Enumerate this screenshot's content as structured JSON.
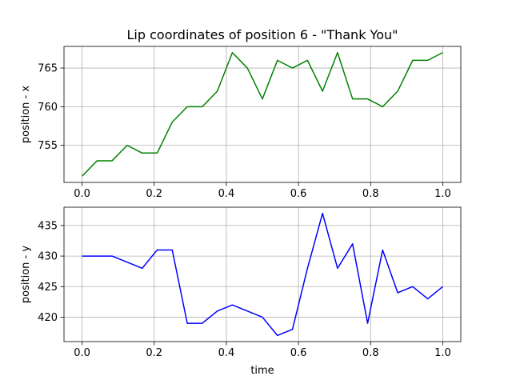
{
  "chart_data": [
    {
      "type": "line",
      "title": "Lip coordinates of position 6 - \"Thank You\"",
      "xlabel": "",
      "ylabel": "position - x",
      "xlim": [
        -0.05,
        1.05
      ],
      "ylim": [
        750.2,
        767.8
      ],
      "xticks": [
        0.0,
        0.2,
        0.4,
        0.6,
        0.8,
        1.0
      ],
      "yticks": [
        755,
        760,
        765
      ],
      "grid": true,
      "series": [
        {
          "color": "#008000",
          "x": [
            0.0,
            0.0417,
            0.0833,
            0.125,
            0.1667,
            0.2083,
            0.25,
            0.2917,
            0.3333,
            0.375,
            0.4167,
            0.4583,
            0.5,
            0.5417,
            0.5833,
            0.625,
            0.6667,
            0.7083,
            0.75,
            0.7917,
            0.8333,
            0.875,
            0.9167,
            0.9583,
            1.0
          ],
          "y": [
            751,
            753,
            753,
            755,
            754,
            754,
            758,
            760,
            760,
            762,
            767,
            765,
            761,
            766,
            765,
            766,
            762,
            767,
            761,
            761,
            760,
            762,
            766,
            766,
            767
          ]
        }
      ]
    },
    {
      "type": "line",
      "title": "",
      "xlabel": "time",
      "ylabel": "position - y",
      "xlim": [
        -0.05,
        1.05
      ],
      "ylim": [
        416.0,
        438.0
      ],
      "xticks": [
        0.0,
        0.2,
        0.4,
        0.6,
        0.8,
        1.0
      ],
      "yticks": [
        420,
        425,
        430,
        435
      ],
      "grid": true,
      "series": [
        {
          "color": "#0000ff",
          "x": [
            0.0,
            0.0417,
            0.0833,
            0.125,
            0.1667,
            0.2083,
            0.25,
            0.2917,
            0.3333,
            0.375,
            0.4167,
            0.4583,
            0.5,
            0.5417,
            0.5833,
            0.625,
            0.6667,
            0.7083,
            0.75,
            0.7917,
            0.8333,
            0.875,
            0.9167,
            0.9583,
            1.0
          ],
          "y": [
            430,
            430,
            430,
            429,
            428,
            431,
            431,
            419,
            419,
            421,
            422,
            421,
            420,
            417,
            418,
            428,
            437,
            428,
            432,
            419,
            431,
            424,
            425,
            423,
            425
          ]
        }
      ]
    }
  ]
}
